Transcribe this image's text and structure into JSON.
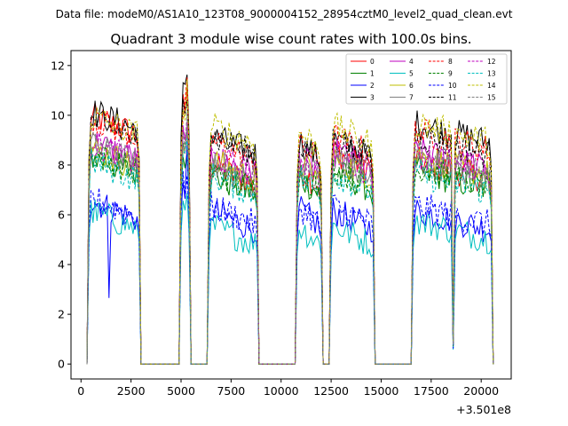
{
  "header": {
    "data_file": "Data file: modeM0/AS1A10_123T08_9000004152_28954cztM0_level2_quad_clean.evt"
  },
  "chart_data": {
    "type": "line",
    "title": "Quadrant 3 module wise count rates with 100.0s bins.",
    "xlabel": "",
    "ylabel": "",
    "x_offset_label": "+3.501e8",
    "xlim": [
      -500,
      21500
    ],
    "ylim": [
      -0.6,
      12.6
    ],
    "xticks": [
      0,
      2500,
      5000,
      7500,
      10000,
      12500,
      15000,
      17500,
      20000
    ],
    "xtick_labels": [
      "0",
      "2500",
      "5000",
      "7500",
      "10000",
      "12500",
      "15000",
      "17500",
      "20000"
    ],
    "yticks": [
      0,
      2,
      4,
      6,
      8,
      10,
      12
    ],
    "ytick_labels": [
      "0",
      "2",
      "4",
      "6",
      "8",
      "10",
      "12"
    ],
    "legend_position": "top-right",
    "on_segments": [
      [
        400,
        2900
      ],
      [
        5000,
        5400
      ],
      [
        6400,
        8800
      ],
      [
        10800,
        12000
      ],
      [
        12500,
        14600
      ],
      [
        16600,
        20500
      ]
    ],
    "gap_value": 0,
    "dips": [
      {
        "x": 1400,
        "depth": 0.55,
        "modules": [
          "2"
        ]
      },
      {
        "x": 18600,
        "depth": 0.9,
        "modules": [
          "all"
        ]
      }
    ],
    "series": [
      {
        "name": "0",
        "color": "#ff0000",
        "dash": "solid",
        "levels": [
          9.6,
          10.2,
          7.6,
          7.5,
          8.2,
          7.8
        ]
      },
      {
        "name": "1",
        "color": "#008000",
        "dash": "solid",
        "levels": [
          8.0,
          8.0,
          7.2,
          7.2,
          7.4,
          7.4
        ]
      },
      {
        "name": "2",
        "color": "#0000ff",
        "dash": "solid",
        "levels": [
          6.2,
          7.2,
          5.8,
          5.9,
          5.8,
          5.8
        ]
      },
      {
        "name": "3",
        "color": "#000000",
        "dash": "solid",
        "levels": [
          9.8,
          10.8,
          8.8,
          8.6,
          8.7,
          9.3
        ]
      },
      {
        "name": "4",
        "color": "#bf00bf",
        "dash": "solid",
        "levels": [
          8.6,
          8.8,
          8.0,
          8.0,
          8.2,
          8.2
        ]
      },
      {
        "name": "5",
        "color": "#00bfbf",
        "dash": "solid",
        "levels": [
          5.8,
          6.2,
          5.2,
          5.2,
          5.2,
          5.4
        ]
      },
      {
        "name": "6",
        "color": "#bfbf00",
        "dash": "solid",
        "levels": [
          8.3,
          8.6,
          7.8,
          7.8,
          7.9,
          8.0
        ]
      },
      {
        "name": "7",
        "color": "#808080",
        "dash": "solid",
        "levels": [
          8.4,
          8.6,
          7.6,
          7.6,
          7.8,
          7.8
        ]
      },
      {
        "name": "8",
        "color": "#ff0000",
        "dash": "dashed",
        "levels": [
          9.5,
          10.0,
          8.6,
          8.5,
          8.8,
          9.0
        ]
      },
      {
        "name": "9",
        "color": "#008000",
        "dash": "dashed",
        "levels": [
          8.1,
          8.3,
          7.4,
          7.4,
          7.5,
          7.5
        ]
      },
      {
        "name": "10",
        "color": "#0000ff",
        "dash": "dashed",
        "levels": [
          6.3,
          7.0,
          6.0,
          6.0,
          6.0,
          6.0
        ]
      },
      {
        "name": "11",
        "color": "#000000",
        "dash": "dashed",
        "levels": [
          9.4,
          10.2,
          8.8,
          8.5,
          8.7,
          8.8
        ]
      },
      {
        "name": "12",
        "color": "#bf00bf",
        "dash": "dashed",
        "levels": [
          8.5,
          8.8,
          8.0,
          8.0,
          8.1,
          8.1
        ]
      },
      {
        "name": "13",
        "color": "#00bfbf",
        "dash": "dashed",
        "levels": [
          7.8,
          8.0,
          7.2,
          7.2,
          7.3,
          7.3
        ]
      },
      {
        "name": "14",
        "color": "#bfbf00",
        "dash": "dashed",
        "levels": [
          9.6,
          10.0,
          9.2,
          9.0,
          9.2,
          9.3
        ]
      },
      {
        "name": "15",
        "color": "#808080",
        "dash": "dashed",
        "levels": [
          8.5,
          8.8,
          7.9,
          7.8,
          8.0,
          8.0
        ]
      }
    ]
  }
}
